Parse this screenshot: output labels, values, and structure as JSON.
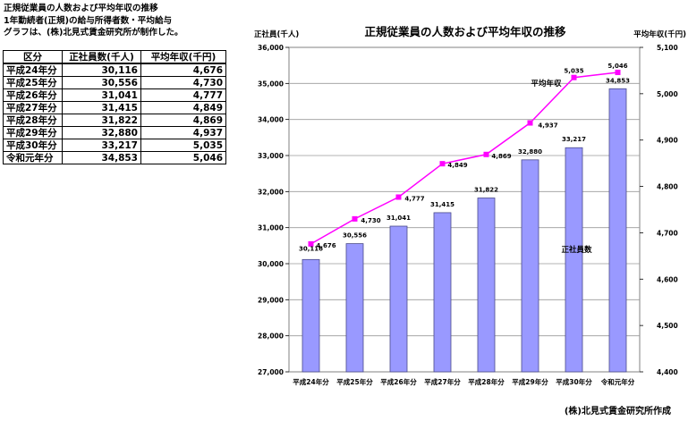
{
  "intro": {
    "line1": "正規従業員の人数および平均年収の推移",
    "line2": "1年勤続者(正規)の給与所得者数・平均給与",
    "line3": "グラフは、(株)北見式賃金研究所が制作した。"
  },
  "table": {
    "headers": [
      "区分",
      "正社員数(千人)",
      "平均年収(千円)"
    ],
    "rows": [
      [
        "平成24年分",
        "30,116",
        "4,676"
      ],
      [
        "平成25年分",
        "30,556",
        "4,730"
      ],
      [
        "平成26年分",
        "31,041",
        "4,777"
      ],
      [
        "平成27年分",
        "31,415",
        "4,849"
      ],
      [
        "平成28年分",
        "31,822",
        "4,869"
      ],
      [
        "平成29年分",
        "32,880",
        "4,937"
      ],
      [
        "平成30年分",
        "33,217",
        "5,035"
      ],
      [
        "令和元年分",
        "34,853",
        "5,046"
      ]
    ]
  },
  "chart_data": {
    "type": "bar",
    "title": "正規従業員の人数および平均年収の推移",
    "ylabel_left": "正社員(千人)",
    "ylabel_right": "平均年収(千円)",
    "categories": [
      "平成24年分",
      "平成25年分",
      "平成26年分",
      "平成27年分",
      "平成28年分",
      "平成29年分",
      "平成30年分",
      "令和元年分"
    ],
    "series": [
      {
        "name": "正社員数",
        "type": "bar",
        "axis": "left",
        "values": [
          30116,
          30556,
          31041,
          31415,
          31822,
          32880,
          33217,
          34853
        ],
        "labels": [
          "30,116",
          "30,556",
          "31,041",
          "31,415",
          "31,822",
          "32,880",
          "33,217",
          "34,853"
        ],
        "color": "#9999ff"
      },
      {
        "name": "平均年収",
        "type": "line",
        "axis": "right",
        "values": [
          4676,
          4730,
          4777,
          4849,
          4869,
          4937,
          5035,
          5046
        ],
        "labels": [
          "4,676",
          "4,730",
          "4,777",
          "4,849",
          "4,869",
          "4,937",
          "5,035",
          "5,046"
        ],
        "color": "#ff00ff"
      }
    ],
    "ylim_left": [
      27000,
      36000
    ],
    "yticks_left": [
      "27,000",
      "28,000",
      "29,000",
      "30,000",
      "31,000",
      "32,000",
      "33,000",
      "34,000",
      "35,000",
      "36,000"
    ],
    "ylim_right": [
      4400,
      5100
    ],
    "yticks_right": [
      "4,400",
      "4,500",
      "4,600",
      "4,700",
      "4,800",
      "4,900",
      "5,000",
      "5,100"
    ],
    "grid": true,
    "legend": "in-plot labels"
  },
  "credit": "(株)北見式賃金研究所作成"
}
